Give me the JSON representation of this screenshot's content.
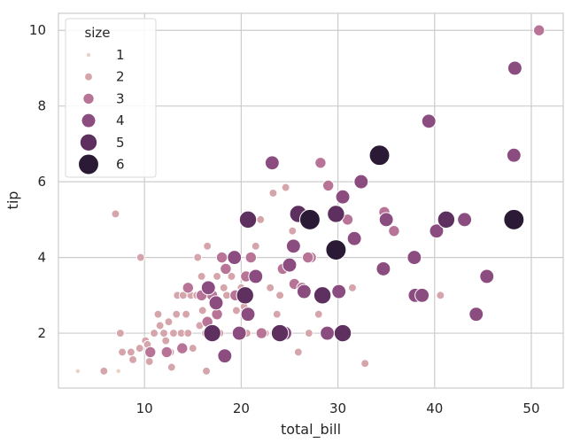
{
  "chart_data": {
    "type": "scatter",
    "title": "",
    "xlabel": "total_bill",
    "ylabel": "tip",
    "xlim": [
      1.1,
      53.3
    ],
    "ylim": [
      0.55,
      10.45
    ],
    "xticks": [
      10,
      20,
      30,
      40,
      50
    ],
    "yticks": [
      2,
      4,
      6,
      8,
      10
    ],
    "grid": true,
    "legend": {
      "title": "size",
      "placement": "top-left",
      "entries": [
        {
          "label": "1",
          "color": "#ead1c4"
        },
        {
          "label": "2",
          "color": "#d6a5ab"
        },
        {
          "label": "3",
          "color": "#b77496"
        },
        {
          "label": "4",
          "color": "#8b4d80"
        },
        {
          "label": "5",
          "color": "#5d305f"
        },
        {
          "label": "6",
          "color": "#2b1a36"
        }
      ]
    },
    "colors": {
      "1": "#ead1c4",
      "2": "#d6a5ab",
      "3": "#b77496",
      "4": "#8b4d80",
      "5": "#5d305f",
      "6": "#2b1a36"
    },
    "points": [
      {
        "x": 3.1,
        "y": 1.0,
        "size": 1
      },
      {
        "x": 5.8,
        "y": 1.0,
        "size": 2
      },
      {
        "x": 7.3,
        "y": 1.0,
        "size": 1
      },
      {
        "x": 7.5,
        "y": 2.0,
        "size": 2
      },
      {
        "x": 7.0,
        "y": 5.15,
        "size": 2
      },
      {
        "x": 7.7,
        "y": 1.5,
        "size": 2
      },
      {
        "x": 8.6,
        "y": 1.5,
        "size": 2
      },
      {
        "x": 8.8,
        "y": 1.3,
        "size": 2
      },
      {
        "x": 9.5,
        "y": 1.6,
        "size": 2
      },
      {
        "x": 9.6,
        "y": 4.0,
        "size": 2
      },
      {
        "x": 10.1,
        "y": 1.8,
        "size": 2
      },
      {
        "x": 10.3,
        "y": 1.7,
        "size": 2
      },
      {
        "x": 10.5,
        "y": 1.25,
        "size": 2
      },
      {
        "x": 10.6,
        "y": 1.5,
        "size": 2
      },
      {
        "x": 11.0,
        "y": 2.0,
        "size": 2
      },
      {
        "x": 11.6,
        "y": 2.2,
        "size": 2
      },
      {
        "x": 11.4,
        "y": 2.5,
        "size": 2
      },
      {
        "x": 12.0,
        "y": 2.0,
        "size": 2
      },
      {
        "x": 12.2,
        "y": 1.8,
        "size": 2
      },
      {
        "x": 12.5,
        "y": 2.3,
        "size": 2
      },
      {
        "x": 12.7,
        "y": 1.5,
        "size": 2
      },
      {
        "x": 13.0,
        "y": 2.0,
        "size": 2
      },
      {
        "x": 13.3,
        "y": 2.5,
        "size": 2
      },
      {
        "x": 13.4,
        "y": 3.0,
        "size": 2
      },
      {
        "x": 13.8,
        "y": 2.0,
        "size": 2
      },
      {
        "x": 14.0,
        "y": 3.0,
        "size": 2
      },
      {
        "x": 14.3,
        "y": 2.5,
        "size": 2
      },
      {
        "x": 14.5,
        "y": 2.0,
        "size": 2
      },
      {
        "x": 14.8,
        "y": 3.0,
        "size": 2
      },
      {
        "x": 15.0,
        "y": 1.6,
        "size": 2
      },
      {
        "x": 15.4,
        "y": 3.0,
        "size": 2
      },
      {
        "x": 15.7,
        "y": 2.2,
        "size": 2
      },
      {
        "x": 15.9,
        "y": 3.5,
        "size": 2
      },
      {
        "x": 16.0,
        "y": 2.6,
        "size": 2
      },
      {
        "x": 16.3,
        "y": 2.0,
        "size": 2
      },
      {
        "x": 16.5,
        "y": 4.3,
        "size": 2
      },
      {
        "x": 16.9,
        "y": 3.0,
        "size": 2
      },
      {
        "x": 17.3,
        "y": 2.7,
        "size": 2
      },
      {
        "x": 17.5,
        "y": 3.5,
        "size": 2
      },
      {
        "x": 17.8,
        "y": 2.0,
        "size": 2
      },
      {
        "x": 18.2,
        "y": 3.2,
        "size": 2
      },
      {
        "x": 18.5,
        "y": 3.0,
        "size": 2
      },
      {
        "x": 19.0,
        "y": 3.5,
        "size": 2
      },
      {
        "x": 19.5,
        "y": 2.6,
        "size": 2
      },
      {
        "x": 20.0,
        "y": 3.2,
        "size": 2
      },
      {
        "x": 20.3,
        "y": 2.7,
        "size": 2
      },
      {
        "x": 20.6,
        "y": 2.0,
        "size": 2
      },
      {
        "x": 21.0,
        "y": 3.0,
        "size": 2
      },
      {
        "x": 21.5,
        "y": 4.3,
        "size": 2
      },
      {
        "x": 22.0,
        "y": 5.0,
        "size": 2
      },
      {
        "x": 22.5,
        "y": 2.0,
        "size": 2
      },
      {
        "x": 23.0,
        "y": 3.2,
        "size": 2
      },
      {
        "x": 23.3,
        "y": 5.7,
        "size": 2
      },
      {
        "x": 23.7,
        "y": 2.5,
        "size": 2
      },
      {
        "x": 24.0,
        "y": 3.0,
        "size": 2
      },
      {
        "x": 24.6,
        "y": 5.85,
        "size": 2
      },
      {
        "x": 25.3,
        "y": 4.7,
        "size": 2
      },
      {
        "x": 25.9,
        "y": 1.5,
        "size": 2
      },
      {
        "x": 27.0,
        "y": 2.0,
        "size": 2
      },
      {
        "x": 28.0,
        "y": 2.5,
        "size": 2
      },
      {
        "x": 31.5,
        "y": 3.2,
        "size": 2
      },
      {
        "x": 32.8,
        "y": 1.2,
        "size": 2
      },
      {
        "x": 40.6,
        "y": 3.0,
        "size": 2
      },
      {
        "x": 16.4,
        "y": 1.0,
        "size": 2
      },
      {
        "x": 12.8,
        "y": 1.1,
        "size": 2
      },
      {
        "x": 15.5,
        "y": 4.0,
        "size": 2
      },
      {
        "x": 16.5,
        "y": 2.3,
        "size": 3
      },
      {
        "x": 17.0,
        "y": 3.0,
        "size": 3
      },
      {
        "x": 17.5,
        "y": 2.5,
        "size": 3
      },
      {
        "x": 18.0,
        "y": 4.0,
        "size": 3
      },
      {
        "x": 18.4,
        "y": 3.7,
        "size": 3
      },
      {
        "x": 19.4,
        "y": 3.0,
        "size": 3
      },
      {
        "x": 20.5,
        "y": 3.5,
        "size": 3
      },
      {
        "x": 21.0,
        "y": 4.0,
        "size": 3
      },
      {
        "x": 22.1,
        "y": 2.0,
        "size": 3
      },
      {
        "x": 24.3,
        "y": 3.7,
        "size": 3
      },
      {
        "x": 25.5,
        "y": 3.3,
        "size": 3
      },
      {
        "x": 26.3,
        "y": 3.2,
        "size": 3
      },
      {
        "x": 27.2,
        "y": 4.0,
        "size": 3
      },
      {
        "x": 28.2,
        "y": 6.5,
        "size": 3
      },
      {
        "x": 29.0,
        "y": 5.9,
        "size": 3
      },
      {
        "x": 31.0,
        "y": 5.0,
        "size": 3
      },
      {
        "x": 34.8,
        "y": 5.2,
        "size": 3
      },
      {
        "x": 35.8,
        "y": 4.7,
        "size": 3
      },
      {
        "x": 26.9,
        "y": 4.0,
        "size": 3
      },
      {
        "x": 50.8,
        "y": 10.0,
        "size": 3
      },
      {
        "x": 14.5,
        "y": 3.2,
        "size": 3
      },
      {
        "x": 13.9,
        "y": 1.6,
        "size": 3
      },
      {
        "x": 12.3,
        "y": 1.5,
        "size": 3
      },
      {
        "x": 15.9,
        "y": 3.0,
        "size": 3
      },
      {
        "x": 10.6,
        "y": 1.5,
        "size": 3
      },
      {
        "x": 16.6,
        "y": 3.2,
        "size": 4
      },
      {
        "x": 17.4,
        "y": 2.8,
        "size": 4
      },
      {
        "x": 18.3,
        "y": 1.4,
        "size": 4
      },
      {
        "x": 19.3,
        "y": 4.0,
        "size": 4
      },
      {
        "x": 19.8,
        "y": 2.0,
        "size": 4
      },
      {
        "x": 20.7,
        "y": 2.5,
        "size": 4
      },
      {
        "x": 21.5,
        "y": 3.5,
        "size": 4
      },
      {
        "x": 23.2,
        "y": 6.5,
        "size": 4
      },
      {
        "x": 24.5,
        "y": 2.0,
        "size": 4
      },
      {
        "x": 25.0,
        "y": 3.8,
        "size": 4
      },
      {
        "x": 25.4,
        "y": 4.3,
        "size": 4
      },
      {
        "x": 26.5,
        "y": 3.1,
        "size": 4
      },
      {
        "x": 28.9,
        "y": 2.0,
        "size": 4
      },
      {
        "x": 30.1,
        "y": 3.1,
        "size": 4
      },
      {
        "x": 30.5,
        "y": 5.6,
        "size": 4
      },
      {
        "x": 31.7,
        "y": 4.5,
        "size": 4
      },
      {
        "x": 32.4,
        "y": 6.0,
        "size": 4
      },
      {
        "x": 34.7,
        "y": 3.7,
        "size": 4
      },
      {
        "x": 37.9,
        "y": 4.0,
        "size": 4
      },
      {
        "x": 38.0,
        "y": 3.0,
        "size": 4
      },
      {
        "x": 38.7,
        "y": 3.0,
        "size": 4
      },
      {
        "x": 39.4,
        "y": 7.6,
        "size": 4
      },
      {
        "x": 40.2,
        "y": 4.7,
        "size": 4
      },
      {
        "x": 43.1,
        "y": 5.0,
        "size": 4
      },
      {
        "x": 44.3,
        "y": 2.5,
        "size": 4
      },
      {
        "x": 45.4,
        "y": 3.5,
        "size": 4
      },
      {
        "x": 48.3,
        "y": 9.0,
        "size": 4
      },
      {
        "x": 48.2,
        "y": 6.7,
        "size": 4
      },
      {
        "x": 35.0,
        "y": 5.0,
        "size": 4
      },
      {
        "x": 20.7,
        "y": 5.0,
        "size": 5
      },
      {
        "x": 25.9,
        "y": 5.15,
        "size": 5
      },
      {
        "x": 24.0,
        "y": 2.0,
        "size": 5
      },
      {
        "x": 28.4,
        "y": 3.0,
        "size": 5
      },
      {
        "x": 29.8,
        "y": 5.15,
        "size": 5
      },
      {
        "x": 20.4,
        "y": 3.0,
        "size": 5
      },
      {
        "x": 17.0,
        "y": 2.0,
        "size": 5
      },
      {
        "x": 30.5,
        "y": 2.0,
        "size": 5
      },
      {
        "x": 41.2,
        "y": 5.0,
        "size": 5
      },
      {
        "x": 27.1,
        "y": 5.0,
        "size": 6
      },
      {
        "x": 29.8,
        "y": 4.2,
        "size": 6
      },
      {
        "x": 34.3,
        "y": 6.7,
        "size": 6
      },
      {
        "x": 48.2,
        "y": 5.0,
        "size": 6
      }
    ]
  }
}
